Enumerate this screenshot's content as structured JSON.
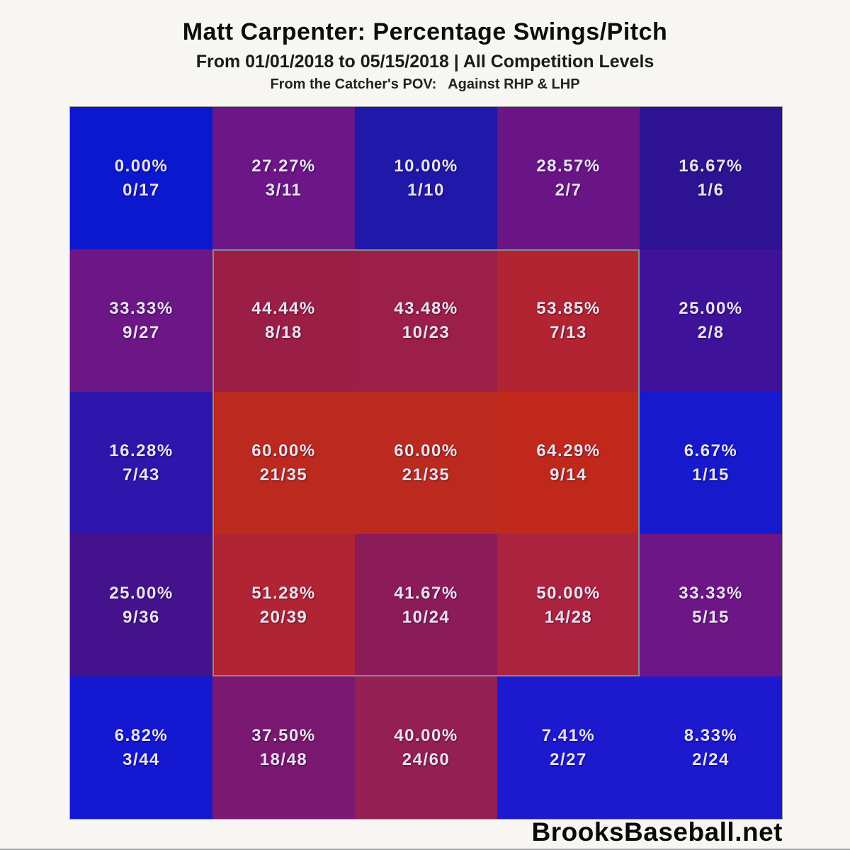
{
  "title": "Matt Carpenter: Percentage Swings/Pitch",
  "subtitle": "From 01/01/2018 to 05/15/2018 | All Competition Levels",
  "pov_line": "From the Catcher's POV:   Against RHP & LHP",
  "footer": "BrooksBaseball.net",
  "chart_data": {
    "type": "heatmap",
    "rows": 5,
    "cols": 5,
    "title": "Matt Carpenter: Percentage Swings/Pitch",
    "value_format": "percent swings per pitch (swings/pitches)",
    "strike_zone": {
      "row_start": 2,
      "row_end": 4,
      "col_start": 2,
      "col_end": 4,
      "border_color": "#8a8a8a"
    },
    "cells": [
      [
        {
          "pct": "0.00%",
          "count": "0/17",
          "value": 0.0,
          "color": "#0b18ce"
        },
        {
          "pct": "27.27%",
          "count": "3/11",
          "value": 27.27,
          "color": "#6c1687"
        },
        {
          "pct": "10.00%",
          "count": "1/10",
          "value": 10.0,
          "color": "#1f18a8"
        },
        {
          "pct": "28.57%",
          "count": "2/7",
          "value": 28.57,
          "color": "#6a1586"
        },
        {
          "pct": "16.67%",
          "count": "1/6",
          "value": 16.67,
          "color": "#2d1292"
        }
      ],
      [
        {
          "pct": "33.33%",
          "count": "9/27",
          "value": 33.33,
          "color": "#6d1787"
        },
        {
          "pct": "44.44%",
          "count": "8/18",
          "value": 44.44,
          "color": "#9b1e46"
        },
        {
          "pct": "43.48%",
          "count": "10/23",
          "value": 43.48,
          "color": "#9b1f48"
        },
        {
          "pct": "53.85%",
          "count": "7/13",
          "value": 53.85,
          "color": "#b22432"
        },
        {
          "pct": "25.00%",
          "count": "2/8",
          "value": 25.0,
          "color": "#3e1399"
        }
      ],
      [
        {
          "pct": "16.28%",
          "count": "7/43",
          "value": 16.28,
          "color": "#2e15ac"
        },
        {
          "pct": "60.00%",
          "count": "21/35",
          "value": 60.0,
          "color": "#bc2a1f"
        },
        {
          "pct": "60.00%",
          "count": "21/35",
          "value": 60.0,
          "color": "#bc2a1f"
        },
        {
          "pct": "64.29%",
          "count": "9/14",
          "value": 64.29,
          "color": "#c0281c"
        },
        {
          "pct": "6.67%",
          "count": "1/15",
          "value": 6.67,
          "color": "#1619cc"
        }
      ],
      [
        {
          "pct": "25.00%",
          "count": "9/36",
          "value": 25.0,
          "color": "#44128d"
        },
        {
          "pct": "51.28%",
          "count": "20/39",
          "value": 51.28,
          "color": "#b02433"
        },
        {
          "pct": "41.67%",
          "count": "10/24",
          "value": 41.67,
          "color": "#8c1b59"
        },
        {
          "pct": "50.00%",
          "count": "14/28",
          "value": 50.0,
          "color": "#ac2340"
        },
        {
          "pct": "33.33%",
          "count": "5/15",
          "value": 33.33,
          "color": "#6d1685"
        }
      ],
      [
        {
          "pct": "6.82%",
          "count": "3/44",
          "value": 6.82,
          "color": "#1418d0"
        },
        {
          "pct": "37.50%",
          "count": "18/48",
          "value": 37.5,
          "color": "#7b1871"
        },
        {
          "pct": "40.00%",
          "count": "24/60",
          "value": 40.0,
          "color": "#941f53"
        },
        {
          "pct": "7.41%",
          "count": "2/27",
          "value": 7.41,
          "color": "#1c19ce"
        },
        {
          "pct": "8.33%",
          "count": "2/24",
          "value": 8.33,
          "color": "#1c19ce"
        }
      ]
    ]
  }
}
